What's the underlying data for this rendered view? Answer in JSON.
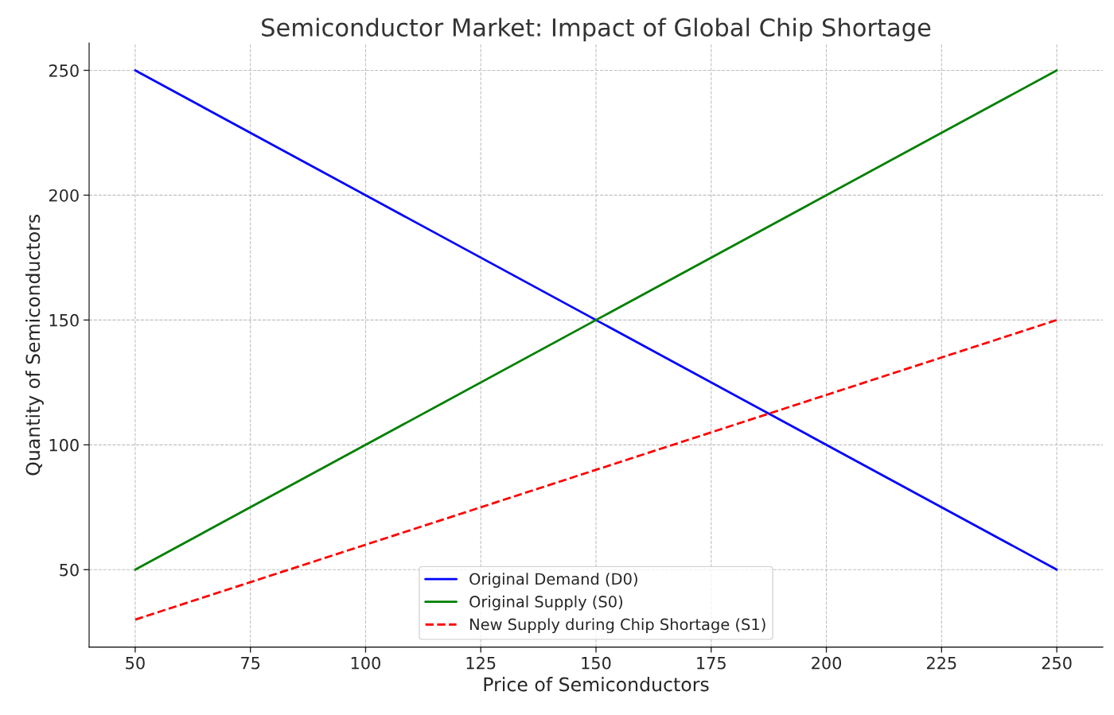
{
  "chart_data": {
    "type": "line",
    "title": "Semiconductor Market: Impact of Global Chip Shortage",
    "xlabel": "Price of Semiconductors",
    "ylabel": "Quantity of Semiconductors",
    "x": [
      50,
      250
    ],
    "series": [
      {
        "name": "Original Demand (D0)",
        "color": "#0000ff",
        "values": [
          250,
          50
        ],
        "line_style": "solid"
      },
      {
        "name": "Original Supply (S0)",
        "color": "#008000",
        "values": [
          50,
          250
        ],
        "line_style": "solid"
      },
      {
        "name": "New Supply during Chip Shortage (S1)",
        "color": "#ff0000",
        "values": [
          30,
          150
        ],
        "line_style": "dashed"
      }
    ],
    "xlim": [
      40,
      260
    ],
    "ylim": [
      19,
      261
    ],
    "xticks": [
      50,
      75,
      100,
      125,
      150,
      175,
      200,
      225,
      250
    ],
    "yticks": [
      50,
      100,
      150,
      200,
      250
    ],
    "grid": true,
    "legend": "bottom",
    "marker": "none"
  }
}
